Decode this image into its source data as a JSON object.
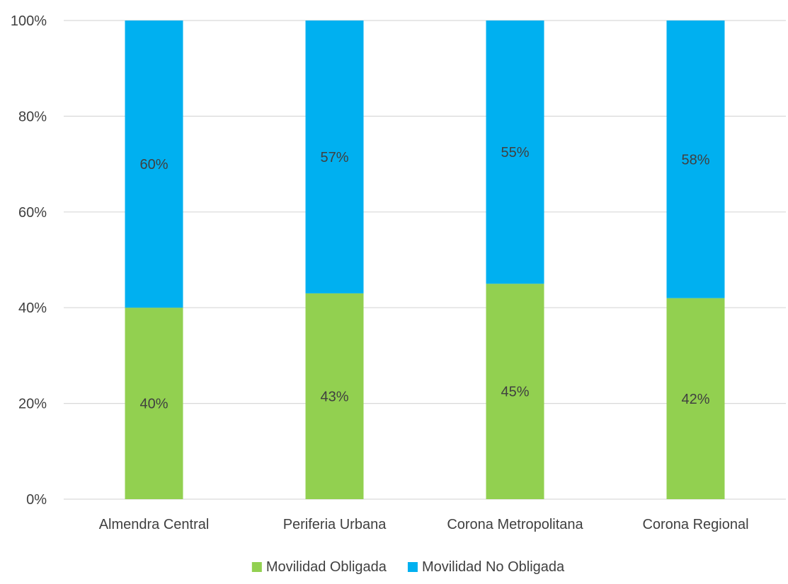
{
  "chart_data": {
    "type": "bar",
    "stacked": true,
    "percent_stacked": true,
    "categories": [
      "Almendra Central",
      "Periferia Urbana",
      "Corona Metropolitana",
      "Corona Regional"
    ],
    "series": [
      {
        "name": "Movilidad Obligada",
        "values": [
          40,
          43,
          45,
          42
        ],
        "labels": [
          "40%",
          "43%",
          "45%",
          "42%"
        ],
        "color": "#92D050"
      },
      {
        "name": "Movilidad No Obligada",
        "values": [
          60,
          57,
          55,
          58
        ],
        "labels": [
          "60%",
          "57%",
          "55%",
          "58%"
        ],
        "color": "#00B0F0"
      }
    ],
    "ylim": [
      0,
      100
    ],
    "yticks": [
      0,
      20,
      40,
      60,
      80,
      100
    ],
    "ytick_labels": [
      "0%",
      "20%",
      "40%",
      "60%",
      "80%",
      "100%"
    ],
    "grid": true,
    "gridline_color": "#D9D9D9",
    "legend_position": "bottom",
    "title": "",
    "xlabel": "",
    "ylabel": ""
  }
}
